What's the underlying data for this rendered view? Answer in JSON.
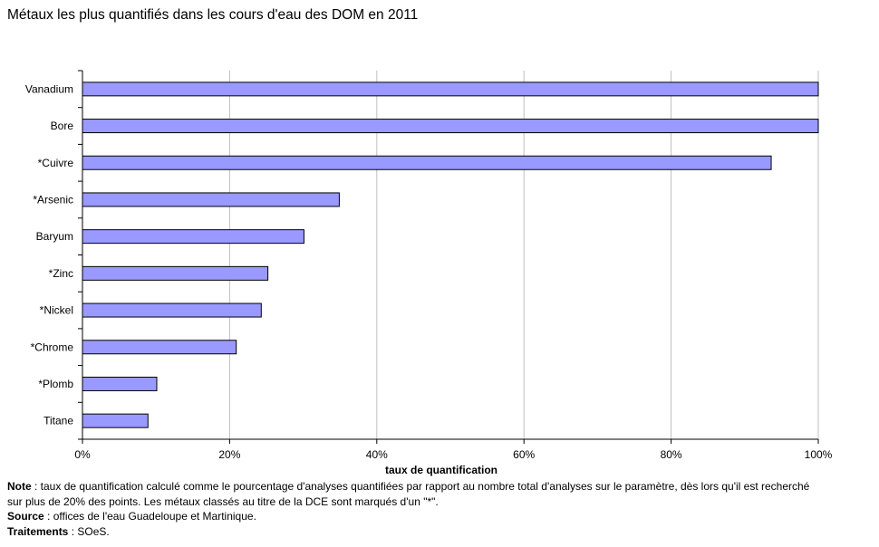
{
  "chart_data": {
    "type": "bar",
    "orientation": "horizontal",
    "title": "Métaux les plus quantifiés dans les cours d'eau des DOM en 2011",
    "xlabel": "taux de quantification",
    "ylabel": "",
    "xlim": [
      0,
      100
    ],
    "x_ticks": [
      "0%",
      "20%",
      "40%",
      "60%",
      "80%",
      "100%"
    ],
    "grid": "vertical",
    "legend": "none",
    "bar_color": "#9999ff",
    "categories": [
      "Vanadium",
      "Bore",
      "*Cuivre",
      "*Arsenic",
      "Baryum",
      "*Zinc",
      "*Nickel",
      "*Chrome",
      "*Plomb",
      "Titane"
    ],
    "values": [
      100,
      100,
      93.6,
      34.9,
      30.1,
      25.2,
      24.3,
      20.9,
      10.1,
      8.9
    ]
  },
  "notes": {
    "note_label": "Note",
    "note_text": " : taux de quantification calculé comme le pourcentage d'analyses quantifiées par rapport au nombre total d'analyses sur le paramètre, dès lors qu'il est recherché sur plus de 20% des points. Les métaux classés au titre de la DCE sont marqués d'un \"*\".",
    "source_label": "Source",
    "source_text": " : offices de l'eau Guadeloupe et Martinique.",
    "traitements_label": "Traitements",
    "traitements_text": " : SOeS."
  }
}
